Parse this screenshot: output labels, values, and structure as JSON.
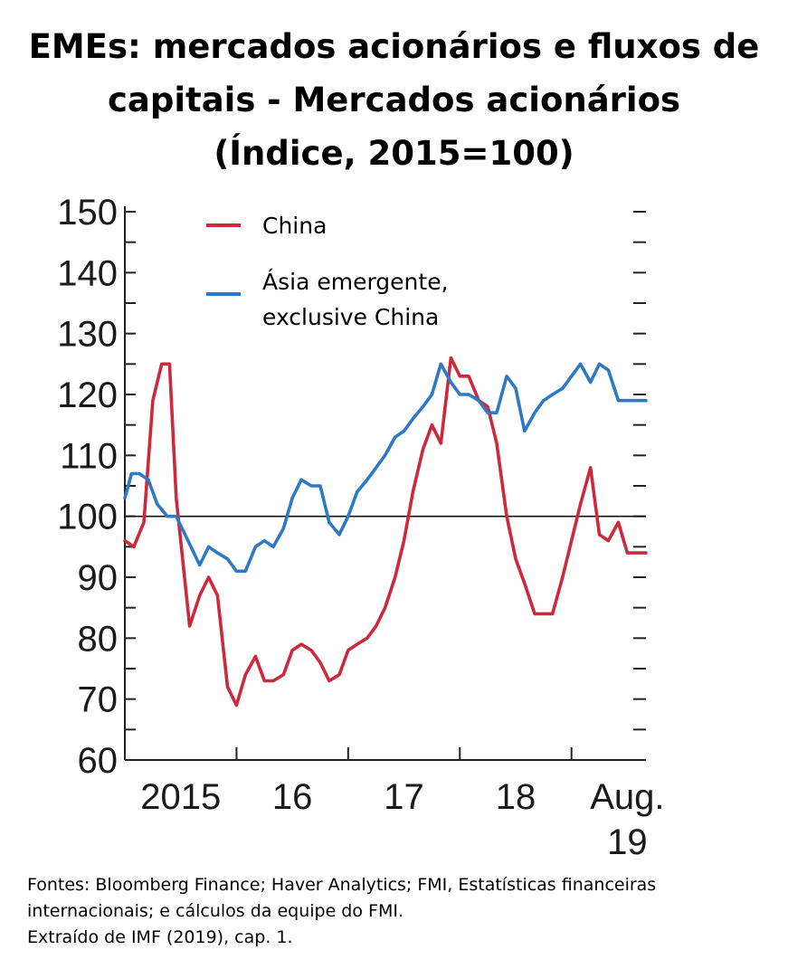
{
  "title_lines": [
    "EMEs: mercados acionários e fluxos de",
    "capitais - Mercados acionários",
    "(Índice, 2015=100)"
  ],
  "footer_lines": [
    "Fontes: Bloomberg Finance; Haver Analytics; FMI, Estatísticas financeiras",
    "internacionais; e cálculos da equipe do FMI.",
    "Extraído de IMF (2019), cap. 1."
  ],
  "chart_data": {
    "type": "line",
    "title": "EMEs: mercados acionários e fluxos de capitais - Mercados acionários (Índice, 2015=100)",
    "xlabel": "",
    "ylabel": "",
    "ylim": [
      60,
      150
    ],
    "xlim": [
      2015.0,
      2019.667
    ],
    "yticks": [
      60,
      70,
      80,
      90,
      100,
      110,
      120,
      130,
      140,
      150
    ],
    "ytick_labels": [
      "60",
      "70",
      "80",
      "90",
      "100",
      "110",
      "120",
      "130",
      "140",
      "150"
    ],
    "xtick_labels": [
      {
        "x": 2015.5,
        "label": "2015"
      },
      {
        "x": 2016.5,
        "label": "16"
      },
      {
        "x": 2017.5,
        "label": "17"
      },
      {
        "x": 2018.5,
        "label": "18"
      },
      {
        "x": 2019.5,
        "label": "Aug.",
        "label2": "19"
      }
    ],
    "reference_line": 100,
    "grid": false,
    "legend_position": "top-left",
    "series": [
      {
        "name": "China",
        "color": "#cc2a3c",
        "x": [
          2015.0,
          2015.08,
          2015.17,
          2015.25,
          2015.33,
          2015.4,
          2015.46,
          2015.58,
          2015.67,
          2015.75,
          2015.83,
          2015.92,
          2016.0,
          2016.08,
          2016.17,
          2016.25,
          2016.33,
          2016.42,
          2016.5,
          2016.58,
          2016.67,
          2016.75,
          2016.83,
          2016.92,
          2017.0,
          2017.08,
          2017.17,
          2017.25,
          2017.33,
          2017.42,
          2017.5,
          2017.58,
          2017.67,
          2017.75,
          2017.83,
          2017.92,
          2018.0,
          2018.08,
          2018.17,
          2018.25,
          2018.33,
          2018.42,
          2018.5,
          2018.58,
          2018.67,
          2018.75,
          2018.83,
          2018.92,
          2019.0,
          2019.08,
          2019.17,
          2019.25,
          2019.33,
          2019.42,
          2019.5,
          2019.58,
          2019.667
        ],
        "y": [
          96,
          95,
          99,
          119,
          125,
          125,
          103,
          82,
          87,
          90,
          87,
          72,
          69,
          74,
          77,
          73,
          73,
          74,
          78,
          79,
          78,
          76,
          73,
          74,
          78,
          79,
          80,
          82,
          85,
          90,
          96,
          104,
          111,
          115,
          112,
          126,
          123,
          123,
          119,
          118,
          112,
          100,
          93,
          89,
          84,
          84,
          84,
          90,
          96,
          102,
          108,
          97,
          96,
          99,
          94,
          94,
          94
        ]
      },
      {
        "name": "Ásia emergente, exclusive China",
        "color": "#2f79c4",
        "x": [
          2015.0,
          2015.06,
          2015.13,
          2015.21,
          2015.29,
          2015.38,
          2015.46,
          2015.54,
          2015.67,
          2015.75,
          2015.83,
          2015.92,
          2016.0,
          2016.08,
          2016.17,
          2016.25,
          2016.33,
          2016.42,
          2016.5,
          2016.58,
          2016.67,
          2016.75,
          2016.83,
          2016.92,
          2017.0,
          2017.08,
          2017.17,
          2017.25,
          2017.33,
          2017.42,
          2017.5,
          2017.58,
          2017.67,
          2017.75,
          2017.83,
          2017.92,
          2018.0,
          2018.08,
          2018.17,
          2018.25,
          2018.33,
          2018.42,
          2018.5,
          2018.58,
          2018.67,
          2018.75,
          2018.83,
          2018.92,
          2019.0,
          2019.08,
          2019.17,
          2019.25,
          2019.33,
          2019.42,
          2019.5,
          2019.58,
          2019.667
        ],
        "y": [
          103,
          107,
          107,
          106,
          102,
          100,
          100,
          97,
          92,
          95,
          94,
          93,
          91,
          91,
          95,
          96,
          95,
          98,
          103,
          106,
          105,
          105,
          99,
          97,
          100,
          104,
          106,
          108,
          110,
          113,
          114,
          116,
          118,
          120,
          125,
          122,
          120,
          120,
          119,
          117,
          117,
          123,
          121,
          114,
          117,
          119,
          120,
          121,
          123,
          125,
          122,
          125,
          124,
          119,
          119,
          119,
          119
        ]
      }
    ]
  }
}
